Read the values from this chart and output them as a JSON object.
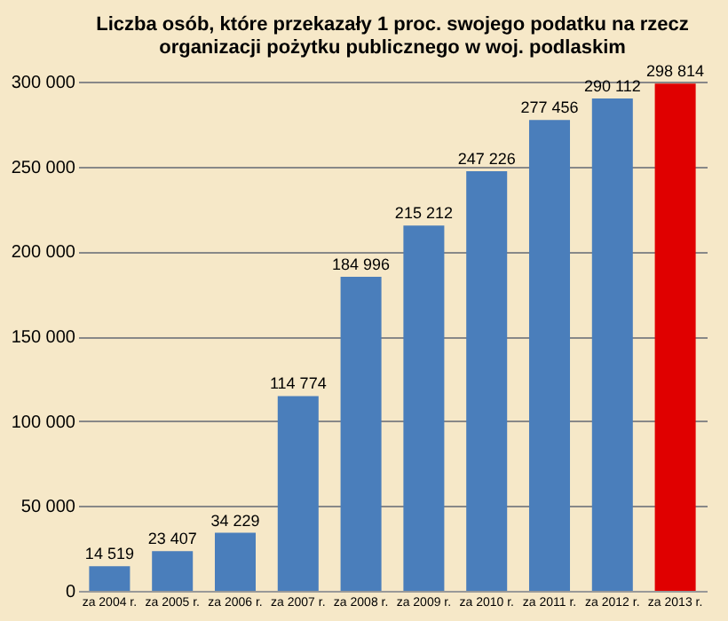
{
  "chart_data": {
    "type": "bar",
    "title": [
      "Liczba osób, które przekazały 1 proc. swojego podatku na rzecz",
      "organizacji pożytku publicznego w woj. podlaskim"
    ],
    "categories": [
      "za 2004 r.",
      "za 2005 r.",
      "za 2006 r.",
      "za 2007 r.",
      "za 2008 r.",
      "za 2009 r.",
      "za 2010 r.",
      "za 2011 r.",
      "za 2012 r.",
      "za 2013 r."
    ],
    "values": [
      14519,
      23407,
      34229,
      114774,
      184996,
      215212,
      247226,
      277456,
      290112,
      298814
    ],
    "colors": [
      "#4a7ebb",
      "#4a7ebb",
      "#4a7ebb",
      "#4a7ebb",
      "#4a7ebb",
      "#4a7ebb",
      "#4a7ebb",
      "#4a7ebb",
      "#4a7ebb",
      "#e00000"
    ],
    "value_labels": [
      "14 519",
      "23 407",
      "34 229",
      "114 774",
      "184 996",
      "215 212",
      "247 226",
      "277 456",
      "290 112",
      "298 814"
    ],
    "ylim": [
      0,
      300000
    ],
    "yticks": [
      0,
      {
        "value": 50000,
        "label": "50 000"
      },
      {
        "value": 100000,
        "label": "100 000"
      },
      {
        "value": 150000,
        "label": "150 000"
      },
      {
        "value": 200000,
        "label": "200 000"
      },
      {
        "value": 250000,
        "label": "250 000"
      },
      {
        "value": 300000,
        "label": "300 000"
      }
    ],
    "grid": "y"
  }
}
